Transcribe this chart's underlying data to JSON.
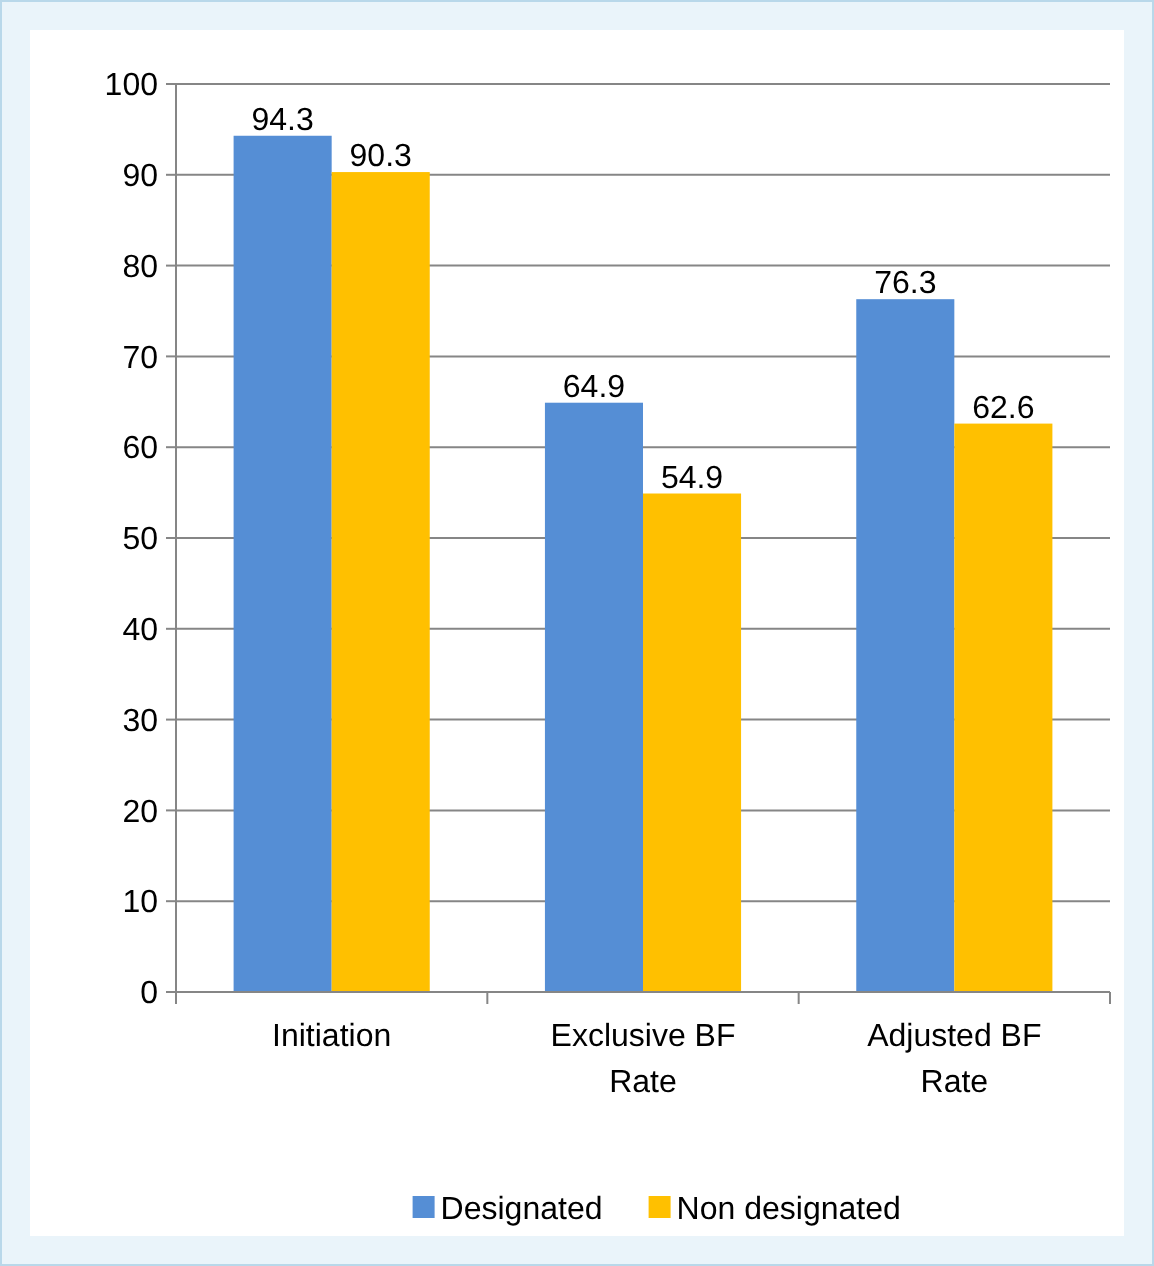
{
  "chart_data": {
    "type": "bar",
    "categories": [
      "Initiation",
      "Exclusive BF Rate",
      "Adjusted BF Rate"
    ],
    "series": [
      {
        "name": "Designated",
        "color": "#558ed5",
        "values": [
          94.3,
          64.9,
          76.3
        ]
      },
      {
        "name": "Non designated",
        "color": "#ffc000",
        "values": [
          90.3,
          54.9,
          62.6
        ]
      }
    ],
    "ylim": [
      0,
      100
    ],
    "yticks": [
      0,
      10,
      20,
      30,
      40,
      50,
      60,
      70,
      80,
      90,
      100
    ],
    "grid": "y",
    "data_labels": true,
    "legend": "bottom"
  }
}
